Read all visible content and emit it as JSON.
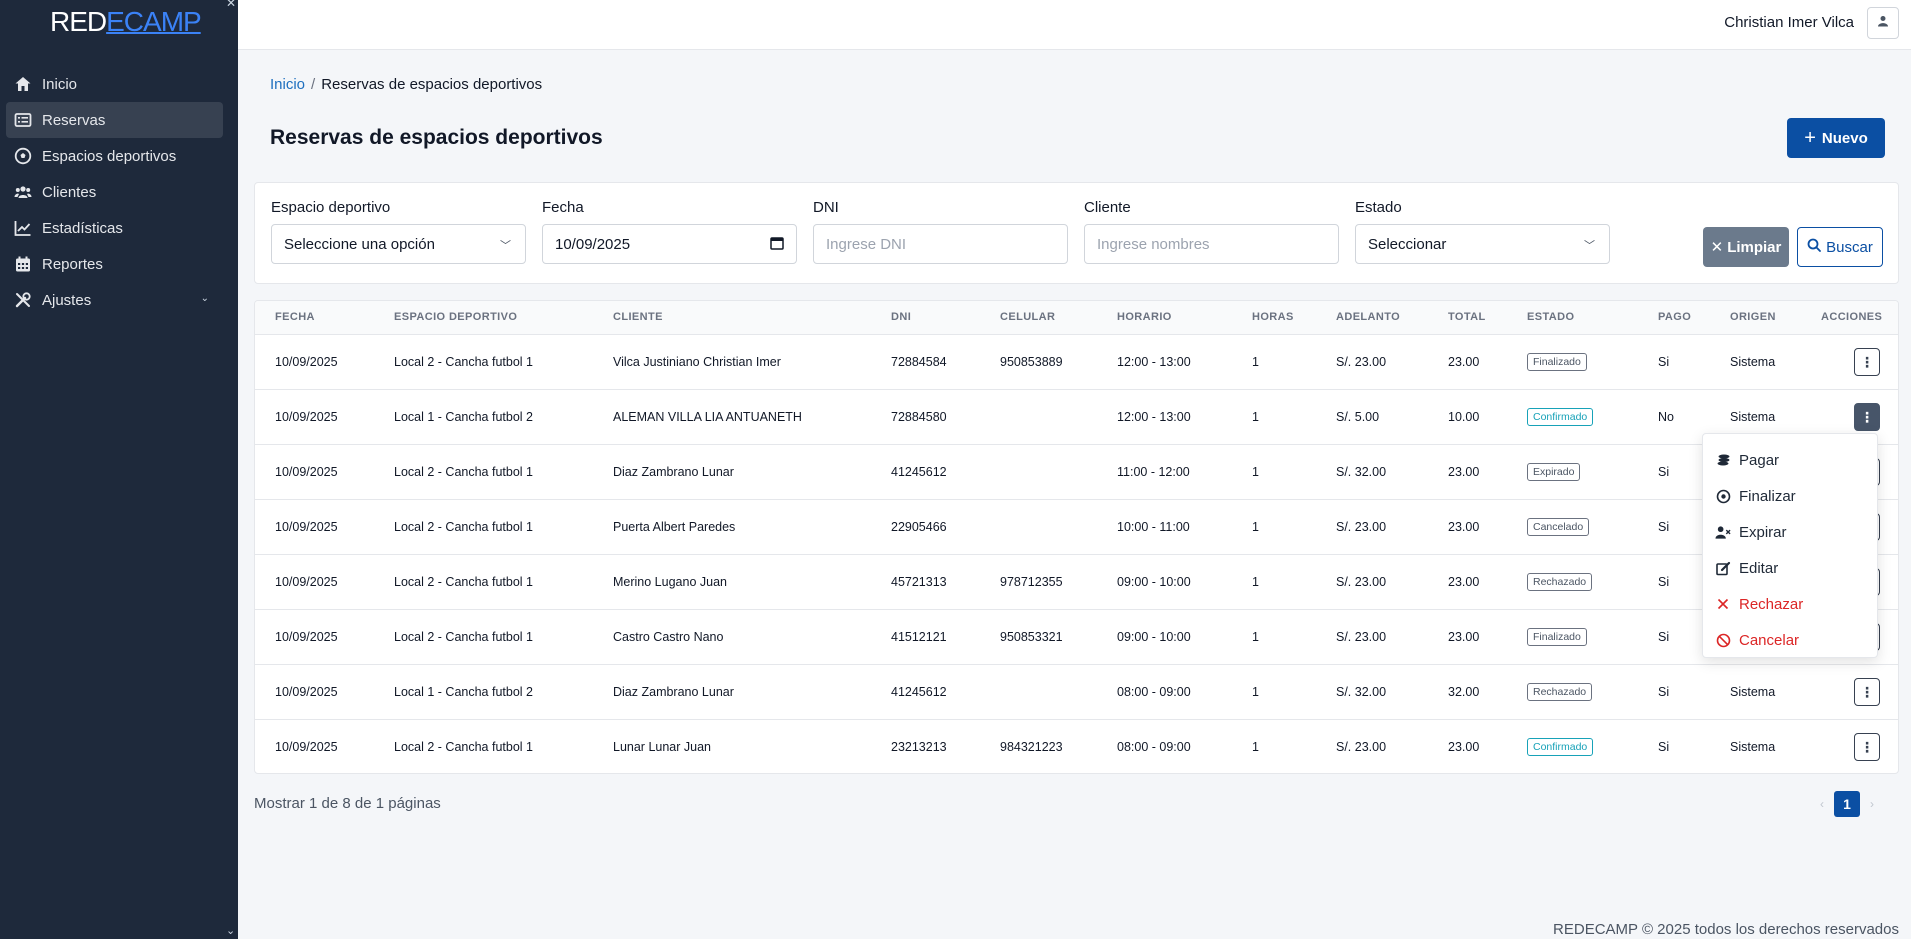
{
  "brand": {
    "part1": "RED",
    "part2": "ECAMP"
  },
  "sidebar": {
    "items": [
      {
        "label": "Inicio",
        "icon": "home-icon",
        "active": false
      },
      {
        "label": "Reservas",
        "icon": "list-icon",
        "active": true
      },
      {
        "label": "Espacios deportivos",
        "icon": "soccer-ball-icon",
        "active": false
      },
      {
        "label": "Clientes",
        "icon": "users-icon",
        "active": false
      },
      {
        "label": "Estadísticas",
        "icon": "chart-line-icon",
        "active": false
      },
      {
        "label": "Reportes",
        "icon": "calendar-icon",
        "active": false
      },
      {
        "label": "Ajustes",
        "icon": "tools-icon",
        "active": false
      }
    ]
  },
  "header": {
    "username": "Christian Imer Vilca"
  },
  "breadcrumb": {
    "home": "Inicio",
    "separator": "/",
    "current": "Reservas de espacios deportivos"
  },
  "page": {
    "title": "Reservas de espacios deportivos",
    "new_button": "Nuevo"
  },
  "filters": {
    "espacio": {
      "label": "Espacio deportivo",
      "value": "Seleccione una opción"
    },
    "fecha": {
      "label": "Fecha",
      "value": "10/09/2025"
    },
    "dni": {
      "label": "DNI",
      "placeholder": "Ingrese DNI"
    },
    "cliente": {
      "label": "Cliente",
      "placeholder": "Ingrese nombres"
    },
    "estado": {
      "label": "Estado",
      "value": "Seleccionar"
    },
    "clear_button": "Limpiar",
    "search_button": "Buscar"
  },
  "table": {
    "columns": [
      "FECHA",
      "ESPACIO DEPORTIVO",
      "CLIENTE",
      "DNI",
      "CELULAR",
      "HORARIO",
      "HORAS",
      "ADELANTO",
      "TOTAL",
      "ESTADO",
      "PAGO",
      "ORIGEN",
      "ACCIONES"
    ],
    "rows": [
      {
        "fecha": "10/09/2025",
        "espacio": "Local 2 - Cancha futbol 1",
        "cliente": "Vilca Justiniano Christian Imer",
        "dni": "72884584",
        "celular": "950853889",
        "horario": "12:00 - 13:00",
        "horas": "1",
        "adelanto": "S/. 23.00",
        "total": "23.00",
        "estado": "Finalizado",
        "pago": "Si",
        "origen": "Sistema"
      },
      {
        "fecha": "10/09/2025",
        "espacio": "Local 1 - Cancha futbol 2",
        "cliente": "ALEMAN VILLA LIA ANTUANETH",
        "dni": "72884580",
        "celular": "",
        "horario": "12:00 - 13:00",
        "horas": "1",
        "adelanto": "S/. 5.00",
        "total": "10.00",
        "estado": "Confirmado",
        "pago": "No",
        "origen": "Sistema"
      },
      {
        "fecha": "10/09/2025",
        "espacio": "Local 2 - Cancha futbol 1",
        "cliente": "Diaz Zambrano Lunar",
        "dni": "41245612",
        "celular": "",
        "horario": "11:00 - 12:00",
        "horas": "1",
        "adelanto": "S/. 32.00",
        "total": "23.00",
        "estado": "Expirado",
        "pago": "Si",
        "origen": ""
      },
      {
        "fecha": "10/09/2025",
        "espacio": "Local 2 - Cancha futbol 1",
        "cliente": "Puerta Albert Paredes",
        "dni": "22905466",
        "celular": "",
        "horario": "10:00 - 11:00",
        "horas": "1",
        "adelanto": "S/. 23.00",
        "total": "23.00",
        "estado": "Cancelado",
        "pago": "Si",
        "origen": ""
      },
      {
        "fecha": "10/09/2025",
        "espacio": "Local 2 - Cancha futbol 1",
        "cliente": "Merino Lugano Juan",
        "dni": "45721313",
        "celular": "978712355",
        "horario": "09:00 - 10:00",
        "horas": "1",
        "adelanto": "S/. 23.00",
        "total": "23.00",
        "estado": "Rechazado",
        "pago": "Si",
        "origen": ""
      },
      {
        "fecha": "10/09/2025",
        "espacio": "Local 2 - Cancha futbol 1",
        "cliente": "Castro Castro Nano",
        "dni": "41512121",
        "celular": "950853321",
        "horario": "09:00 - 10:00",
        "horas": "1",
        "adelanto": "S/. 23.00",
        "total": "23.00",
        "estado": "Finalizado",
        "pago": "Si",
        "origen": ""
      },
      {
        "fecha": "10/09/2025",
        "espacio": "Local 1 - Cancha futbol 2",
        "cliente": "Diaz Zambrano Lunar",
        "dni": "41245612",
        "celular": "",
        "horario": "08:00 - 09:00",
        "horas": "1",
        "adelanto": "S/. 32.00",
        "total": "32.00",
        "estado": "Rechazado",
        "pago": "Si",
        "origen": "Sistema"
      },
      {
        "fecha": "10/09/2025",
        "espacio": "Local 2 - Cancha futbol 1",
        "cliente": "Lunar Lunar Juan",
        "dni": "23213213",
        "celular": "984321223",
        "horario": "08:00 - 09:00",
        "horas": "1",
        "adelanto": "S/. 23.00",
        "total": "23.00",
        "estado": "Confirmado",
        "pago": "Si",
        "origen": "Sistema"
      }
    ],
    "action_glyph": "⋮"
  },
  "action_menu": {
    "items": [
      {
        "label": "Pagar",
        "icon": "coins-icon",
        "danger": false
      },
      {
        "label": "Finalizar",
        "icon": "check-circle-icon",
        "danger": false
      },
      {
        "label": "Expirar",
        "icon": "user-x-icon",
        "danger": false
      },
      {
        "label": "Editar",
        "icon": "edit-icon",
        "danger": false
      },
      {
        "label": "Rechazar",
        "icon": "x-icon",
        "danger": true
      },
      {
        "label": "Cancelar",
        "icon": "ban-icon",
        "danger": true
      }
    ]
  },
  "pagination": {
    "info": "Mostrar 1 de 8 de 1 páginas",
    "current_page": "1"
  },
  "footer": {
    "text": "REDECAMP © 2025 todos los derechos reservados"
  },
  "colors": {
    "sidebar_bg": "#1e293b",
    "primary": "#0b4fa3",
    "clear_btn": "#6b7a8c",
    "badge_confirmado": "#17a2b8",
    "danger": "#dc2626"
  }
}
